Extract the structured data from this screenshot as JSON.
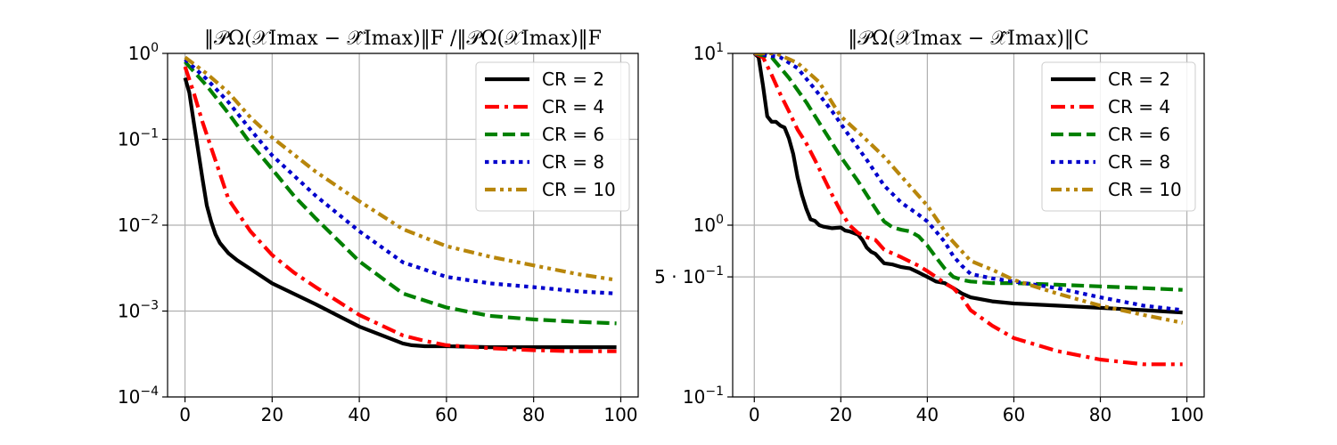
{
  "chart_data": [
    {
      "type": "line",
      "title": "‖𝒫Ω(𝒳Imax − 𝒳̂Imax)‖F /‖𝒫Ω(𝒳Imax)‖F",
      "xlabel": "",
      "ylabel": "",
      "yscale": "log",
      "xlim": [
        -4,
        104
      ],
      "ylim": [
        0.0001,
        1
      ],
      "xticks": [
        "0",
        "20",
        "40",
        "60",
        "80",
        "100"
      ],
      "xtick_values": [
        0,
        20,
        40,
        60,
        80,
        100
      ],
      "yticks": [
        {
          "value": 1,
          "base": "10",
          "exp": "0"
        },
        {
          "value": 0.1,
          "base": "10",
          "exp": "−1"
        },
        {
          "value": 0.01,
          "base": "10",
          "exp": "−2"
        },
        {
          "value": 0.001,
          "base": "10",
          "exp": "−3"
        },
        {
          "value": 0.0001,
          "base": "10",
          "exp": "−4"
        }
      ],
      "grid": true,
      "legend": "top-right",
      "series": [
        {
          "name": "CR = 2",
          "color": "#000000",
          "dash": "solid",
          "x": [
            0,
            1,
            2,
            3,
            4,
            5,
            6,
            7,
            8,
            10,
            12,
            15,
            20,
            30,
            40,
            50,
            52,
            55,
            60,
            70,
            80,
            90,
            99
          ],
          "y": [
            0.52,
            0.35,
            0.16,
            0.075,
            0.035,
            0.017,
            0.011,
            0.0078,
            0.0062,
            0.0047,
            0.0039,
            0.0031,
            0.0021,
            0.0012,
            0.00066,
            0.00042,
            0.0004,
            0.00039,
            0.00039,
            0.00038,
            0.00038,
            0.00038,
            0.00038
          ]
        },
        {
          "name": "CR = 4",
          "color": "#ff0000",
          "dash": "dashdot",
          "x": [
            0,
            2,
            4,
            6,
            8,
            10,
            15,
            20,
            25,
            30,
            40,
            50,
            55,
            60,
            70,
            80,
            90,
            99
          ],
          "y": [
            0.7,
            0.35,
            0.16,
            0.08,
            0.04,
            0.02,
            0.0085,
            0.0045,
            0.0028,
            0.0019,
            0.0009,
            0.00052,
            0.00045,
            0.0004,
            0.00037,
            0.00035,
            0.00034,
            0.00034
          ]
        },
        {
          "name": "CR = 6",
          "color": "#008000",
          "dash": "dashed",
          "x": [
            0,
            5,
            10,
            15,
            20,
            25,
            30,
            40,
            50,
            60,
            70,
            80,
            90,
            99
          ],
          "y": [
            0.8,
            0.42,
            0.2,
            0.09,
            0.045,
            0.022,
            0.012,
            0.0038,
            0.0016,
            0.0011,
            0.00088,
            0.0008,
            0.00075,
            0.00072
          ]
        },
        {
          "name": "CR = 8",
          "color": "#0000cc",
          "dash": "dotted",
          "x": [
            0,
            5,
            10,
            15,
            20,
            30,
            40,
            50,
            60,
            70,
            80,
            90,
            99
          ],
          "y": [
            0.85,
            0.5,
            0.27,
            0.13,
            0.065,
            0.022,
            0.0085,
            0.0037,
            0.0025,
            0.0021,
            0.0019,
            0.0017,
            0.0016
          ]
        },
        {
          "name": "CR = 10",
          "color": "#b8860b",
          "dash": "dashdotdot",
          "x": [
            0,
            5,
            10,
            15,
            20,
            30,
            40,
            50,
            60,
            70,
            80,
            90,
            99
          ],
          "y": [
            0.9,
            0.58,
            0.35,
            0.18,
            0.105,
            0.042,
            0.019,
            0.009,
            0.0057,
            0.0043,
            0.0034,
            0.0027,
            0.0023
          ]
        }
      ]
    },
    {
      "type": "line",
      "title": "‖𝒫Ω(𝒳Imax − 𝒳̂Imax)‖C",
      "xlabel": "",
      "ylabel": "",
      "yscale": "log",
      "xlim": [
        -5,
        104
      ],
      "ylim": [
        0.1,
        10
      ],
      "xticks": [
        "0",
        "20",
        "40",
        "60",
        "80",
        "100"
      ],
      "xtick_values": [
        0,
        20,
        40,
        60,
        80,
        100
      ],
      "yticks": [
        {
          "value": 10,
          "base": "10",
          "exp": "1"
        },
        {
          "value": 1,
          "base": "10",
          "exp": "0"
        },
        {
          "value": 0.5,
          "base": "5 · 10",
          "exp": "−1"
        },
        {
          "value": 0.1,
          "base": "10",
          "exp": "−1"
        }
      ],
      "grid": true,
      "legend": "top-right",
      "series": [
        {
          "name": "CR = 2",
          "color": "#000000",
          "dash": "solid",
          "x": [
            0,
            1,
            2,
            3,
            4,
            5,
            6,
            7,
            8,
            9,
            10,
            11,
            12,
            13,
            14,
            15,
            16,
            18,
            20,
            21,
            22,
            24,
            25,
            26,
            27,
            28,
            30,
            32,
            34,
            36,
            38,
            40,
            42,
            44,
            46,
            48,
            50,
            55,
            60,
            70,
            80,
            90,
            99
          ],
          "y": [
            10,
            9.5,
            6.5,
            4.3,
            4,
            4,
            3.8,
            3.7,
            3.2,
            2.6,
            1.9,
            1.5,
            1.25,
            1.08,
            1.06,
            1.0,
            0.98,
            0.96,
            0.97,
            0.93,
            0.92,
            0.88,
            0.82,
            0.74,
            0.7,
            0.68,
            0.6,
            0.59,
            0.57,
            0.56,
            0.53,
            0.5,
            0.47,
            0.46,
            0.43,
            0.4,
            0.38,
            0.36,
            0.35,
            0.34,
            0.33,
            0.32,
            0.31
          ]
        },
        {
          "name": "CR = 4",
          "color": "#ff0000",
          "dash": "dashdot",
          "x": [
            0,
            2,
            4,
            6,
            8,
            10,
            12,
            14,
            16,
            18,
            20,
            22,
            24,
            26,
            28,
            30,
            34,
            38,
            40,
            42,
            44,
            46,
            48,
            50,
            55,
            60,
            70,
            80,
            90,
            99
          ],
          "y": [
            10,
            9.5,
            7.5,
            5.8,
            4.6,
            3.6,
            3.0,
            2.4,
            1.9,
            1.5,
            1.2,
            1.0,
            0.9,
            0.85,
            0.82,
            0.72,
            0.65,
            0.58,
            0.54,
            0.5,
            0.46,
            0.43,
            0.38,
            0.32,
            0.26,
            0.22,
            0.185,
            0.165,
            0.155,
            0.155
          ]
        },
        {
          "name": "CR = 6",
          "color": "#008000",
          "dash": "dashed",
          "x": [
            0,
            4,
            8,
            12,
            16,
            20,
            24,
            28,
            30,
            32,
            34,
            36,
            38,
            40,
            42,
            44,
            46,
            48,
            50,
            55,
            60,
            70,
            80,
            90,
            99
          ],
          "y": [
            10,
            9.5,
            7.2,
            5.2,
            3.6,
            2.5,
            1.8,
            1.25,
            1.05,
            0.97,
            0.94,
            0.92,
            0.86,
            0.76,
            0.65,
            0.56,
            0.5,
            0.48,
            0.47,
            0.46,
            0.46,
            0.45,
            0.44,
            0.43,
            0.42
          ]
        },
        {
          "name": "CR = 8",
          "color": "#0000cc",
          "dash": "dotted",
          "x": [
            0,
            6,
            10,
            14,
            18,
            22,
            26,
            30,
            34,
            38,
            40,
            42,
            44,
            46,
            48,
            50,
            55,
            60,
            70,
            80,
            90,
            99
          ],
          "y": [
            10,
            9.5,
            8.2,
            6.2,
            4.6,
            3.3,
            2.4,
            1.7,
            1.35,
            1.15,
            1.05,
            0.92,
            0.8,
            0.66,
            0.58,
            0.52,
            0.49,
            0.47,
            0.43,
            0.38,
            0.34,
            0.32
          ]
        },
        {
          "name": "CR = 10",
          "color": "#b8860b",
          "dash": "dashdotdot",
          "x": [
            0,
            5,
            10,
            15,
            20,
            25,
            30,
            35,
            40,
            45,
            50,
            55,
            60,
            70,
            80,
            90,
            99
          ],
          "y": [
            10,
            10,
            8.8,
            6.8,
            4.3,
            3.3,
            2.5,
            1.8,
            1.3,
            0.85,
            0.62,
            0.55,
            0.48,
            0.4,
            0.34,
            0.3,
            0.27
          ]
        }
      ]
    }
  ]
}
